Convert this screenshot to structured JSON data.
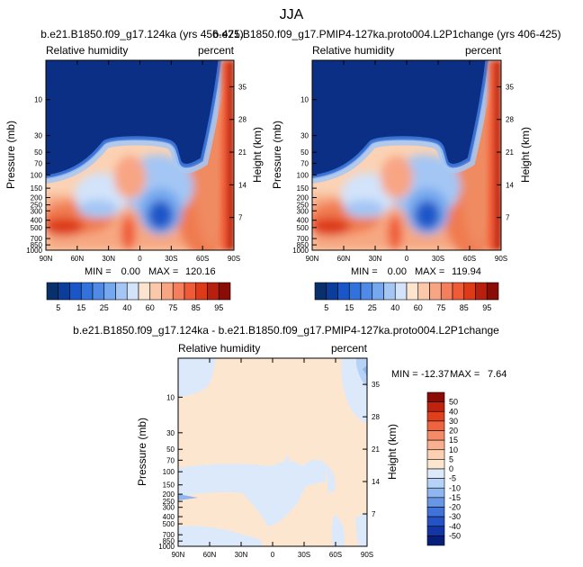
{
  "page_title": "JJA",
  "colors": {
    "blue_scale": [
      "#08306b",
      "#0b3d9c",
      "#1a56c8",
      "#3272dc",
      "#4f8be6",
      "#75a8ee",
      "#a3c6f4",
      "#d2e3fa"
    ],
    "red_scale": [
      "#fde4cf",
      "#fbc9a9",
      "#f8a584",
      "#f57f5c",
      "#f05a36",
      "#dd3a18",
      "#b8200d",
      "#8a0c06"
    ],
    "diff_neg": [
      "#dbe9fb",
      "#b7d2f7",
      "#8fb6f0",
      "#6796e6",
      "#3f73da",
      "#2553c6",
      "#1236a6",
      "#061f7a"
    ],
    "diff_pos": [
      "#fde6d0",
      "#fcd0b2",
      "#f9b08e",
      "#f58a67",
      "#ef6440",
      "#e03f1d",
      "#c0220e",
      "#8c0b05"
    ],
    "frame": "#000000"
  },
  "chart_data": [
    {
      "type": "heatmap",
      "panel": "top-left",
      "title": "b.e21.B1850.f09_g17.124ka (yrs 456-475)",
      "left_label": "Relative humidity",
      "right_label": "percent",
      "xlabel": "",
      "ylabel": "Pressure (mb)",
      "y2label": "Height (km)",
      "x_ticks": [
        "90N",
        "60N",
        "30N",
        "0",
        "30S",
        "60S",
        "90S"
      ],
      "x_range": [
        90,
        -90
      ],
      "y_ticks": [
        "10",
        "30",
        "50",
        "70",
        "100",
        "150",
        "200",
        "250",
        "300",
        "400",
        "500",
        "700",
        "850",
        "1000"
      ],
      "y_range_mb": [
        3,
        1000
      ],
      "y2_ticks": [
        "35",
        "28",
        "21",
        "14",
        "7"
      ],
      "stats": {
        "min_label": "MIN =",
        "min": "0.00",
        "max_label": "MAX =",
        "max": "120.16"
      },
      "levels": [
        5,
        10,
        15,
        20,
        25,
        30,
        40,
        50,
        60,
        70,
        75,
        80,
        85,
        90,
        95
      ]
    },
    {
      "type": "heatmap",
      "panel": "top-right",
      "title": "b.e21.B1850.f09_g17.PMIP4-127ka.proto004.L2P1change (yrs 406-425)",
      "left_label": "Relative humidity",
      "right_label": "percent",
      "xlabel": "",
      "ylabel": "Pressure (mb)",
      "y2label": "Height (km)",
      "x_ticks": [
        "90N",
        "60N",
        "30N",
        "0",
        "30S",
        "60S",
        "90S"
      ],
      "x_range": [
        90,
        -90
      ],
      "y_ticks": [
        "10",
        "30",
        "50",
        "70",
        "100",
        "150",
        "200",
        "250",
        "300",
        "400",
        "500",
        "700",
        "850",
        "1000"
      ],
      "y_range_mb": [
        3,
        1000
      ],
      "y2_ticks": [
        "35",
        "28",
        "21",
        "14",
        "7"
      ],
      "stats": {
        "min_label": "MIN =",
        "min": "0.00",
        "max_label": "MAX =",
        "max": "119.94"
      },
      "levels": [
        5,
        10,
        15,
        20,
        25,
        30,
        40,
        50,
        60,
        70,
        75,
        80,
        85,
        90,
        95
      ]
    },
    {
      "type": "heatmap",
      "panel": "bottom",
      "title": "b.e21.B1850.f09_g17.124ka - b.e21.B1850.f09_g17.PMIP4-127ka.proto004.L2P1change",
      "left_label": "Relative humidity",
      "right_label": "percent",
      "xlabel": "",
      "ylabel": "Pressure (mb)",
      "y2label": "Height (km)",
      "x_ticks": [
        "90N",
        "60N",
        "30N",
        "0",
        "30S",
        "60S",
        "90S"
      ],
      "x_range": [
        90,
        -90
      ],
      "y_ticks": [
        "10",
        "30",
        "50",
        "70",
        "100",
        "150",
        "200",
        "250",
        "300",
        "400",
        "500",
        "700",
        "850",
        "1000"
      ],
      "y_range_mb": [
        3,
        1000
      ],
      "y2_ticks": [
        "35",
        "28",
        "21",
        "14",
        "7"
      ],
      "stats": {
        "min_label": "MIN =",
        "min": "-12.37",
        "max_label": "MAX =",
        "max": "7.64"
      },
      "levels": [
        -50,
        -40,
        -30,
        -20,
        -15,
        -10,
        -5,
        0,
        5,
        10,
        15,
        20,
        30,
        40,
        50
      ]
    }
  ],
  "colorbars": {
    "top_left": [
      "5",
      "15",
      "25",
      "40",
      "60",
      "75",
      "85",
      "95"
    ],
    "top_right": [
      "5",
      "15",
      "25",
      "40",
      "60",
      "75",
      "85",
      "95"
    ],
    "bottom": [
      "50",
      "40",
      "30",
      "20",
      "15",
      "10",
      "5",
      "0",
      "-5",
      "-10",
      "-15",
      "-20",
      "-30",
      "-40",
      "-50"
    ]
  }
}
